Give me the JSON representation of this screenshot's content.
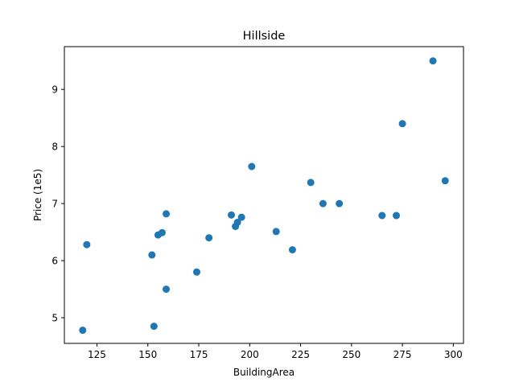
{
  "chart_data": {
    "type": "scatter",
    "title": "Hillside",
    "xlabel": "BuildingArea",
    "ylabel": "Price (1e5)",
    "xlim": [
      109,
      305
    ],
    "ylim": [
      4.55,
      9.75
    ],
    "x_ticks": [
      125,
      150,
      175,
      200,
      225,
      250,
      275,
      300
    ],
    "y_ticks": [
      5,
      6,
      7,
      8,
      9
    ],
    "grid": false,
    "legend": "none",
    "marker_color": "#1f77b4",
    "points": [
      {
        "x": 118,
        "y": 4.78
      },
      {
        "x": 120,
        "y": 6.28
      },
      {
        "x": 152,
        "y": 6.1
      },
      {
        "x": 153,
        "y": 4.85
      },
      {
        "x": 155,
        "y": 6.45
      },
      {
        "x": 157,
        "y": 6.49
      },
      {
        "x": 159,
        "y": 6.82
      },
      {
        "x": 159,
        "y": 5.5
      },
      {
        "x": 174,
        "y": 5.8
      },
      {
        "x": 180,
        "y": 6.4
      },
      {
        "x": 191,
        "y": 6.8
      },
      {
        "x": 193,
        "y": 6.6
      },
      {
        "x": 194,
        "y": 6.67
      },
      {
        "x": 196,
        "y": 6.76
      },
      {
        "x": 201,
        "y": 7.65
      },
      {
        "x": 213,
        "y": 6.51
      },
      {
        "x": 221,
        "y": 6.19
      },
      {
        "x": 230,
        "y": 7.37
      },
      {
        "x": 236,
        "y": 7.0
      },
      {
        "x": 244,
        "y": 7.0
      },
      {
        "x": 265,
        "y": 6.79
      },
      {
        "x": 272,
        "y": 6.79
      },
      {
        "x": 275,
        "y": 8.4
      },
      {
        "x": 290,
        "y": 9.5
      },
      {
        "x": 296,
        "y": 7.4
      }
    ]
  }
}
